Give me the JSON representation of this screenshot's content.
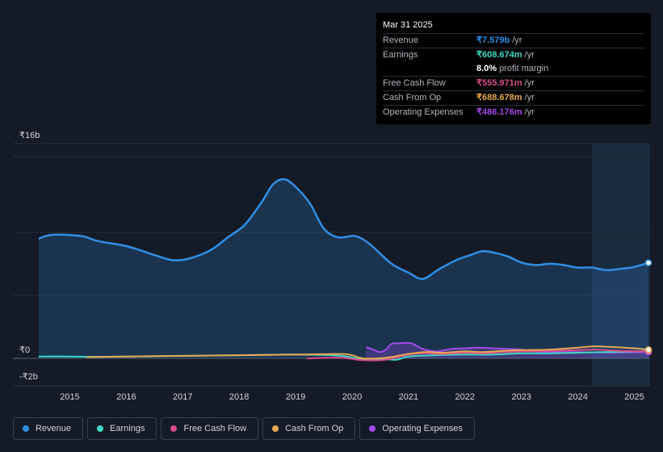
{
  "chart_data": {
    "type": "area",
    "title": "",
    "y_tick_labels": [
      "₹16b",
      "₹0",
      "-₹2b"
    ],
    "ylim": [
      -2,
      16
    ],
    "xlim": [
      2014.45,
      2025.25
    ],
    "x_tick_labels": [
      "2015",
      "2016",
      "2017",
      "2018",
      "2019",
      "2020",
      "2021",
      "2022",
      "2023",
      "2024",
      "2025"
    ],
    "x_tick_values": [
      2015,
      2016,
      2017,
      2018,
      2019,
      2020,
      2021,
      2022,
      2023,
      2024,
      2025
    ],
    "forecast_start": 2024.25,
    "unit": "₹b",
    "series": [
      {
        "name": "Revenue",
        "color": "#2f8ee6",
        "fill": true,
        "points": [
          [
            2014.45,
            9.5
          ],
          [
            2014.7,
            9.8
          ],
          [
            2015.2,
            9.7
          ],
          [
            2015.5,
            9.3
          ],
          [
            2016.0,
            8.9
          ],
          [
            2016.5,
            8.2
          ],
          [
            2016.8,
            7.8
          ],
          [
            2017.1,
            7.9
          ],
          [
            2017.5,
            8.6
          ],
          [
            2017.8,
            9.6
          ],
          [
            2018.1,
            10.6
          ],
          [
            2018.4,
            12.4
          ],
          [
            2018.6,
            13.8
          ],
          [
            2018.8,
            14.2
          ],
          [
            2019.0,
            13.6
          ],
          [
            2019.25,
            12.3
          ],
          [
            2019.5,
            10.3
          ],
          [
            2019.75,
            9.6
          ],
          [
            2020.05,
            9.7
          ],
          [
            2020.3,
            9.1
          ],
          [
            2020.7,
            7.5
          ],
          [
            2021.0,
            6.8
          ],
          [
            2021.25,
            6.3
          ],
          [
            2021.55,
            7.1
          ],
          [
            2021.85,
            7.8
          ],
          [
            2022.1,
            8.2
          ],
          [
            2022.3,
            8.5
          ],
          [
            2022.5,
            8.4
          ],
          [
            2022.75,
            8.1
          ],
          [
            2023.0,
            7.6
          ],
          [
            2023.25,
            7.4
          ],
          [
            2023.5,
            7.5
          ],
          [
            2023.75,
            7.4
          ],
          [
            2024.0,
            7.2
          ],
          [
            2024.25,
            7.2
          ],
          [
            2024.5,
            7.0
          ],
          [
            2024.75,
            7.1
          ],
          [
            2025.0,
            7.25
          ],
          [
            2025.25,
            7.58
          ]
        ]
      },
      {
        "name": "Earnings",
        "color": "#3dd9c4",
        "fill": false,
        "points": [
          [
            2014.45,
            0.15
          ],
          [
            2015.0,
            0.15
          ],
          [
            2015.5,
            0.12
          ],
          [
            2016.0,
            0.15
          ],
          [
            2017.0,
            0.2
          ],
          [
            2018.0,
            0.25
          ],
          [
            2019.0,
            0.3
          ],
          [
            2019.8,
            0.2
          ],
          [
            2020.2,
            -0.1
          ],
          [
            2020.5,
            -0.05
          ],
          [
            2020.8,
            -0.1
          ],
          [
            2021.0,
            0.15
          ],
          [
            2021.5,
            0.25
          ],
          [
            2022.0,
            0.3
          ],
          [
            2022.5,
            0.3
          ],
          [
            2023.0,
            0.4
          ],
          [
            2023.5,
            0.4
          ],
          [
            2024.0,
            0.45
          ],
          [
            2024.5,
            0.5
          ],
          [
            2025.0,
            0.55
          ],
          [
            2025.25,
            0.61
          ]
        ]
      },
      {
        "name": "Free Cash Flow",
        "color": "#d94b8a",
        "fill": false,
        "points": [
          [
            2019.2,
            0.0
          ],
          [
            2019.8,
            0.05
          ],
          [
            2020.2,
            -0.15
          ],
          [
            2020.6,
            -0.1
          ],
          [
            2021.0,
            0.3
          ],
          [
            2021.3,
            0.4
          ],
          [
            2021.6,
            0.35
          ],
          [
            2022.0,
            0.45
          ],
          [
            2022.3,
            0.4
          ],
          [
            2022.7,
            0.5
          ],
          [
            2023.0,
            0.55
          ],
          [
            2023.5,
            0.6
          ],
          [
            2024.0,
            0.65
          ],
          [
            2024.3,
            0.7
          ],
          [
            2024.7,
            0.6
          ],
          [
            2025.25,
            0.56
          ]
        ]
      },
      {
        "name": "Cash From Op",
        "color": "#e8a951",
        "fill": false,
        "points": [
          [
            2015.3,
            0.1
          ],
          [
            2016.0,
            0.15
          ],
          [
            2017.0,
            0.2
          ],
          [
            2018.0,
            0.25
          ],
          [
            2019.0,
            0.3
          ],
          [
            2019.8,
            0.35
          ],
          [
            2020.0,
            0.25
          ],
          [
            2020.2,
            0.0
          ],
          [
            2020.6,
            0.05
          ],
          [
            2021.0,
            0.35
          ],
          [
            2021.3,
            0.5
          ],
          [
            2021.6,
            0.45
          ],
          [
            2022.0,
            0.55
          ],
          [
            2022.3,
            0.5
          ],
          [
            2022.7,
            0.6
          ],
          [
            2023.0,
            0.65
          ],
          [
            2023.5,
            0.7
          ],
          [
            2024.0,
            0.85
          ],
          [
            2024.25,
            0.95
          ],
          [
            2024.6,
            0.9
          ],
          [
            2025.0,
            0.8
          ],
          [
            2025.25,
            0.69
          ]
        ]
      },
      {
        "name": "Operating Expenses",
        "color": "#a34be8",
        "fill": true,
        "points": [
          [
            2020.25,
            0.9
          ],
          [
            2020.4,
            0.65
          ],
          [
            2020.5,
            0.5
          ],
          [
            2020.6,
            0.7
          ],
          [
            2020.7,
            1.15
          ],
          [
            2020.85,
            1.2
          ],
          [
            2021.05,
            1.2
          ],
          [
            2021.25,
            0.75
          ],
          [
            2021.5,
            0.55
          ],
          [
            2021.75,
            0.75
          ],
          [
            2022.0,
            0.8
          ],
          [
            2022.25,
            0.85
          ],
          [
            2022.5,
            0.8
          ],
          [
            2022.75,
            0.75
          ],
          [
            2023.0,
            0.7
          ],
          [
            2023.2,
            0.55
          ],
          [
            2023.5,
            0.5
          ],
          [
            2024.0,
            0.5
          ],
          [
            2024.5,
            0.45
          ],
          [
            2025.0,
            0.48
          ],
          [
            2025.25,
            0.49
          ]
        ]
      }
    ]
  },
  "tooltip": {
    "date": "Mar 31 2025",
    "rows": [
      {
        "label": "Revenue",
        "value": "₹7.579b",
        "unit": "/yr",
        "color": "#2f8ee6"
      },
      {
        "label": "Earnings",
        "value": "₹608.674m",
        "unit": "/yr",
        "color": "#3dd9c4"
      },
      {
        "label": "",
        "value": "8.0%",
        "unit": "profit margin",
        "color": "#ffffff"
      },
      {
        "label": "Free Cash Flow",
        "value": "₹555.971m",
        "unit": "/yr",
        "color": "#d94b8a"
      },
      {
        "label": "Cash From Op",
        "value": "₹688.678m",
        "unit": "/yr",
        "color": "#e8a951"
      },
      {
        "label": "Operating Expenses",
        "value": "₹486.176m",
        "unit": "/yr",
        "color": "#a34be8"
      }
    ]
  },
  "legend": [
    {
      "label": "Revenue",
      "color": "#2f8ee6"
    },
    {
      "label": "Earnings",
      "color": "#3dd9c4"
    },
    {
      "label": "Free Cash Flow",
      "color": "#d94b8a"
    },
    {
      "label": "Cash From Op",
      "color": "#e8a951"
    },
    {
      "label": "Operating Expenses",
      "color": "#a34be8"
    }
  ]
}
